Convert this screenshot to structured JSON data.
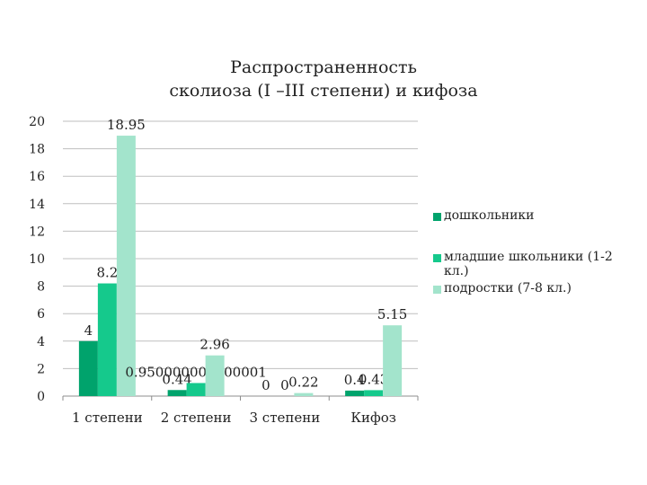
{
  "chart_data": {
    "type": "bar",
    "title_line1": "Распространенность",
    "title_line2": "сколиоза (I –III степени) и кифоза",
    "categories": [
      "1 степени",
      "2 степени",
      "3 степени",
      "Кифоз"
    ],
    "series": [
      {
        "name": "дошкольники",
        "values": [
          4,
          0.44,
          0,
          0.4
        ],
        "labels": [
          "4",
          "0.44",
          "0",
          "0.4"
        ],
        "color": "#00a36c"
      },
      {
        "name": "младшие школьники (1-2 кл.)",
        "values": [
          8.2,
          0.95,
          0,
          0.43
        ],
        "labels": [
          "8.2",
          "0.950000000000001",
          "0",
          "0.43"
        ],
        "color": "#15c98c"
      },
      {
        "name": "подростки (7-8 кл.)",
        "values": [
          18.95,
          2.96,
          0.22,
          5.15
        ],
        "labels": [
          "18.95",
          "2.96",
          "0.22",
          "5.15"
        ],
        "color": "#a3e4cc"
      }
    ],
    "yticks": [
      "0",
      "2",
      "4",
      "6",
      "8",
      "10",
      "12",
      "14",
      "16",
      "18",
      "20"
    ],
    "ylim": [
      0,
      20
    ],
    "grid": true,
    "legend": "right"
  }
}
